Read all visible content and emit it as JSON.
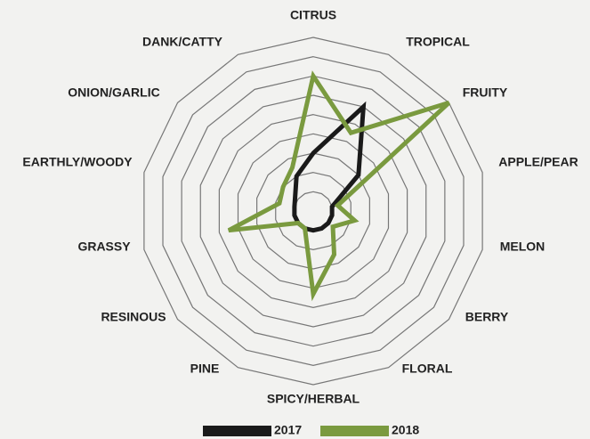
{
  "chart_data": {
    "type": "radar",
    "categories": [
      "CITRUS",
      "TROPICAL",
      "FRUITY",
      "APPLE/PEAR",
      "MELON",
      "BERRY",
      "FLORAL",
      "SPICY/HERBAL",
      "PINE",
      "RESINOUS",
      "GRASSY",
      "EARTHLY/WOODY",
      "ONION/GARLIC",
      "DANK/CATTY"
    ],
    "series": [
      {
        "name": "2017",
        "color": "#1a1a1a",
        "values": [
          3,
          6,
          3,
          1,
          1,
          1,
          1,
          1,
          1,
          1,
          1,
          1,
          1.2,
          2
        ]
      },
      {
        "name": "2018",
        "color": "#7a9a3f",
        "values": [
          7,
          4.5,
          9,
          1.3,
          2.2,
          1.3,
          2.5,
          4.3,
          1,
          1,
          4.5,
          1.8,
          2,
          2.5
        ]
      }
    ],
    "rlim": [
      0,
      9
    ],
    "rticks": [
      1,
      2,
      3,
      4,
      5,
      6,
      7,
      8,
      9
    ],
    "grid": true,
    "legend": "bottom"
  }
}
